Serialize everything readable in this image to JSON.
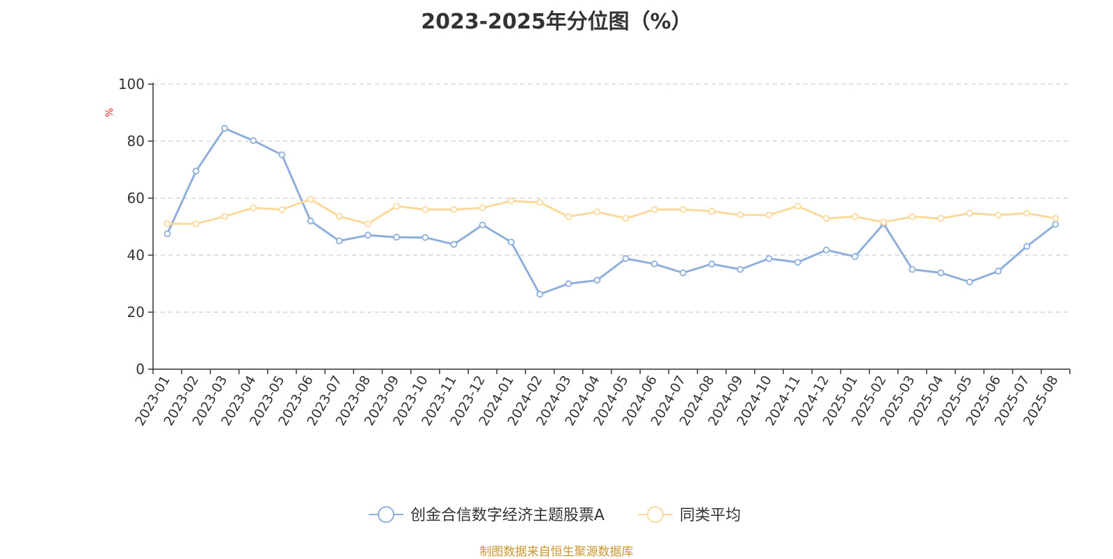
{
  "chart_data": {
    "type": "line",
    "title": "2023-2025年分位图（%）",
    "ylabel": "%",
    "ylim": [
      0,
      100
    ],
    "yticks": [
      0,
      20,
      40,
      60,
      80,
      100
    ],
    "grid": true,
    "legend_position": "bottom",
    "categories": [
      "2023-01",
      "2023-02",
      "2023-03",
      "2023-04",
      "2023-05",
      "2023-06",
      "2023-07",
      "2023-08",
      "2023-09",
      "2023-10",
      "2023-11",
      "2023-12",
      "2024-01",
      "2024-02",
      "2024-03",
      "2024-04",
      "2024-05",
      "2024-06",
      "2024-07",
      "2024-08",
      "2024-09",
      "2024-10",
      "2024-11",
      "2024-12",
      "2025-01",
      "2025-02",
      "2025-03",
      "2025-04",
      "2025-05",
      "2025-06",
      "2025-07",
      "2025-08"
    ],
    "series": [
      {
        "name": "创金合信数字经济主题股票A",
        "color": "#8eaedc",
        "values": [
          47.5,
          69.5,
          84.5,
          80.2,
          75.2,
          52.0,
          45.0,
          47.0,
          46.3,
          46.2,
          43.8,
          50.6,
          44.6,
          26.3,
          30.0,
          31.2,
          38.8,
          36.9,
          33.8,
          36.9,
          35.0,
          38.8,
          37.5,
          41.8,
          39.5,
          51.0,
          35.0,
          33.8,
          30.6,
          34.4,
          43.1,
          50.8
        ]
      },
      {
        "name": "同类平均",
        "color": "#fbd99a",
        "values": [
          51.0,
          51.0,
          53.6,
          56.6,
          56.0,
          59.6,
          53.6,
          51.0,
          57.2,
          56.0,
          56.0,
          56.6,
          59.0,
          58.5,
          53.5,
          55.2,
          52.9,
          56.0,
          56.0,
          55.4,
          54.1,
          54.1,
          57.2,
          52.9,
          53.5,
          51.6,
          53.5,
          52.9,
          54.7,
          54.1,
          54.7,
          52.9
        ]
      }
    ]
  },
  "source": {
    "text": "制图数据来自恒生聚源数据库",
    "color": "#c8962e"
  },
  "style": {
    "axis_color": "#333333",
    "grid_color": "#cccccc",
    "unit_color": "#e02020"
  }
}
